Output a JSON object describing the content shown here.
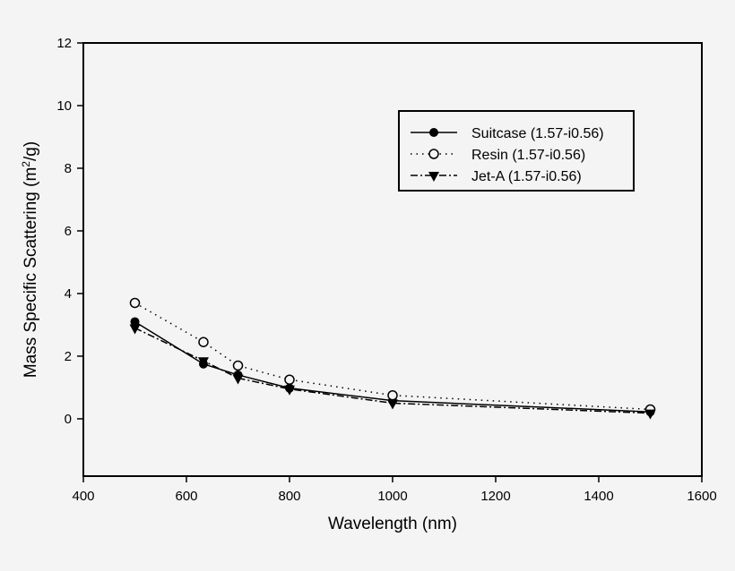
{
  "chart_data": {
    "type": "line",
    "title": "",
    "xlabel": "Wavelength (nm)",
    "ylabel_parts": [
      "Mass Specific Scattering (m",
      "2",
      "/g)"
    ],
    "xlim": [
      400,
      1600
    ],
    "ylim": [
      -1.83,
      12
    ],
    "xticks": [
      400,
      600,
      800,
      1000,
      1200,
      1400,
      1600
    ],
    "yticks": [
      0,
      2,
      4,
      6,
      8,
      10,
      12
    ],
    "grid": false,
    "legend_placement": "top-right",
    "x": [
      500,
      633,
      700,
      800,
      1000,
      1500
    ],
    "series": [
      {
        "name": "Suitcase (1.57-i0.56)",
        "marker": "filled-circle",
        "line": "solid",
        "values": [
          3.1,
          1.75,
          1.4,
          0.98,
          0.58,
          0.22
        ]
      },
      {
        "name": "Resin (1.57-i0.56)",
        "marker": "open-circle",
        "line": "dotted",
        "values": [
          3.7,
          2.45,
          1.7,
          1.25,
          0.75,
          0.3
        ]
      },
      {
        "name": "Jet-A (1.57-i0.56)",
        "marker": "filled-triangle-down",
        "line": "dashdot",
        "values": [
          2.9,
          1.85,
          1.3,
          0.95,
          0.5,
          0.18
        ]
      }
    ]
  }
}
